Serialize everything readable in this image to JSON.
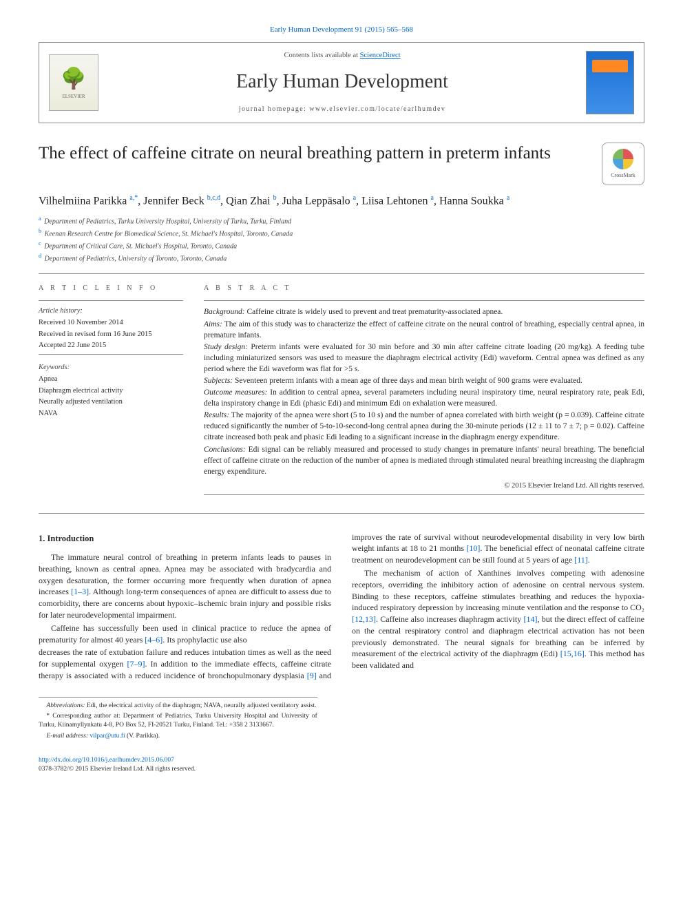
{
  "citation": "Early Human Development 91 (2015) 565–568",
  "masthead": {
    "contents_line_prefix": "Contents lists available at ",
    "contents_link": "ScienceDirect",
    "journal_name": "Early Human Development",
    "homepage_line": "journal homepage: www.elsevier.com/locate/earlhumdev",
    "publisher_label": "ELSEVIER"
  },
  "article": {
    "title": "The effect of caffeine citrate on neural breathing pattern in preterm infants",
    "crossmark_label": "CrossMark",
    "authors_html": "Vilhelmiina Parikka <sup>a,*</sup>, Jennifer Beck <sup>b,c,d</sup>, Qian Zhai <sup>b</sup>, Juha Leppäsalo <sup>a</sup>, Liisa Lehtonen <sup>a</sup>, Hanna Soukka <sup>a</sup>",
    "affiliations": [
      {
        "sup": "a",
        "text": "Department of Pediatrics, Turku University Hospital, University of Turku, Turku, Finland"
      },
      {
        "sup": "b",
        "text": "Keenan Research Centre for Biomedical Science, St. Michael's Hospital, Toronto, Canada"
      },
      {
        "sup": "c",
        "text": "Department of Critical Care, St. Michael's Hospital, Toronto, Canada"
      },
      {
        "sup": "d",
        "text": "Department of Pediatrics, University of Toronto, Toronto, Canada"
      }
    ]
  },
  "info": {
    "heading": "A R T I C L E   I N F O",
    "history_label": "Article history:",
    "received": "Received 10 November 2014",
    "revised": "Received in revised form 16 June 2015",
    "accepted": "Accepted 22 June 2015",
    "keywords_label": "Keywords:",
    "keywords": [
      "Apnea",
      "Diaphragm electrical activity",
      "Neurally adjusted ventilation",
      "NAVA"
    ]
  },
  "abstract": {
    "heading": "A B S T R A C T",
    "sections": [
      {
        "label": "Background:",
        "text": " Caffeine citrate is widely used to prevent and treat prematurity-associated apnea."
      },
      {
        "label": "Aims:",
        "text": " The aim of this study was to characterize the effect of caffeine citrate on the neural control of breathing, especially central apnea, in premature infants."
      },
      {
        "label": "Study design:",
        "text": " Preterm infants were evaluated for 30 min before and 30 min after caffeine citrate loading (20 mg/kg). A feeding tube including miniaturized sensors was used to measure the diaphragm electrical activity (Edi) waveform. Central apnea was defined as any period where the Edi waveform was flat for >5 s."
      },
      {
        "label": "Subjects:",
        "text": " Seventeen preterm infants with a mean age of three days and mean birth weight of 900 grams were evaluated."
      },
      {
        "label": "Outcome measures:",
        "text": " In addition to central apnea, several parameters including neural inspiratory time, neural respiratory rate, peak Edi, delta inspiratory change in Edi (phasic Edi) and minimum Edi on exhalation were measured."
      },
      {
        "label": "Results:",
        "text": " The majority of the apnea were short (5 to 10 s) and the number of apnea correlated with birth weight (p = 0.039). Caffeine citrate reduced significantly the number of 5-to-10-second-long central apnea during the 30-minute periods (12 ± 11 to 7 ± 7; p = 0.02). Caffeine citrate increased both peak and phasic Edi leading to a significant increase in the diaphragm energy expenditure."
      },
      {
        "label": "Conclusions:",
        "text": " Edi signal can be reliably measured and processed to study changes in premature infants' neural breathing. The beneficial effect of caffeine citrate on the reduction of the number of apnea is mediated through stimulated neural breathing increasing the diaphragm energy expenditure."
      }
    ],
    "copyright": "© 2015 Elsevier Ireland Ltd. All rights reserved."
  },
  "body": {
    "section_number": "1.",
    "section_title": "Introduction",
    "p1": "The immature neural control of breathing in preterm infants leads to pauses in breathing, known as central apnea. Apnea may be associated with bradycardia and oxygen desaturation, the former occurring more frequently when duration of apnea increases ",
    "p1_ref": "[1–3]",
    "p1_tail": ". Although long-term consequences of apnea are difficult to assess due to comorbidity, there are concerns about hypoxic–ischemic brain injury and possible risks for later neurodevelopmental impairment.",
    "p2": "Caffeine has successfully been used in clinical practice to reduce the apnea of prematurity for almost 40 years ",
    "p2_ref": "[4–6]",
    "p2_tail": ". Its prophylactic use also",
    "p3a": "decreases the rate of extubation failure and reduces intubation times as well as the need for supplemental oxygen ",
    "p3a_ref": "[7–9]",
    "p3b": ". In addition to the immediate effects, caffeine citrate therapy is associated with a reduced incidence of bronchopulmonary dysplasia ",
    "p3b_ref": "[9]",
    "p3c": " and improves the rate of survival without neurodevelopmental disability in very low birth weight infants at 18 to 21 months ",
    "p3c_ref": "[10]",
    "p3d": ". The beneficial effect of neonatal caffeine citrate treatment on neurodevelopment can be still found at 5 years of age ",
    "p3d_ref": "[11]",
    "p3e": ".",
    "p4a": "The mechanism of action of Xanthines involves competing with adenosine receptors, overriding the inhibitory action of adenosine on central nervous system. Binding to these receptors, caffeine stimulates breathing and reduces the hypoxia-induced respiratory depression by increasing minute ventilation and the response to CO₂ ",
    "p4a_ref": "[12,13]",
    "p4b": ". Caffeine also increases diaphragm activity ",
    "p4b_ref": "[14]",
    "p4c": ", but the direct effect of caffeine on the central respiratory control and diaphragm electrical activation has not been previously demonstrated. The neural signals for breathing can be inferred by measurement of the electrical activity of the diaphragm (Edi) ",
    "p4c_ref": "[15,16]",
    "p4d": ". This method has been validated and"
  },
  "footnotes": {
    "abbrev_label": "Abbreviations:",
    "abbrev_text": " Edi, the electrical activity of the diaphragm; NAVA, neurally adjusted ventilatory assist.",
    "corr_label": "*",
    "corr_text": " Corresponding author at: Department of Pediatrics, Turku University Hospital and University of Turku, Kiinamyllynkatu 4-8, PO Box 52, FI-20521 Turku, Finland. Tel.: +358 2 3133667.",
    "email_label": "E-mail address:",
    "email": " vilpar@utu.fi",
    "email_tail": " (V. Parikka)."
  },
  "footer": {
    "doi": "http://dx.doi.org/10.1016/j.earlhumdev.2015.06.007",
    "issn_line": "0378-3782/© 2015 Elsevier Ireland Ltd. All rights reserved."
  },
  "colors": {
    "link": "#0066cc",
    "text": "#2a2a2a",
    "rule": "#888888"
  }
}
